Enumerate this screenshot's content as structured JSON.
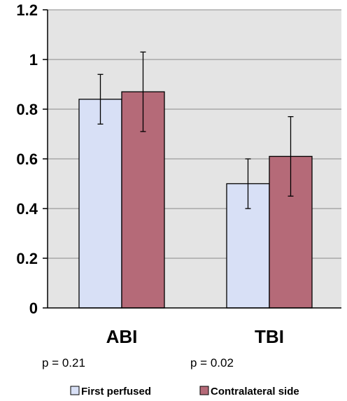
{
  "chart_data": {
    "type": "bar",
    "title": "",
    "xlabel": "",
    "ylabel": "",
    "categories": [
      "ABI",
      "TBI"
    ],
    "series": [
      {
        "name": "First perfused",
        "values": [
          0.84,
          0.5
        ],
        "errors": [
          0.1,
          0.1
        ],
        "color": "#d8e0f6"
      },
      {
        "name": "Contralateral side",
        "values": [
          0.87,
          0.61
        ],
        "errors": [
          0.16,
          0.16
        ],
        "color": "#b56a78"
      }
    ],
    "annotations": [
      "p = 0.21",
      "p = 0.02"
    ],
    "ylim": [
      0,
      1.2
    ],
    "yticks": [
      "0",
      "0.2",
      "0.4",
      "0.6",
      "0.8",
      "1",
      "1.2"
    ],
    "grid": true,
    "legend_position": "bottom",
    "plot_background": "#e4e4e4"
  }
}
